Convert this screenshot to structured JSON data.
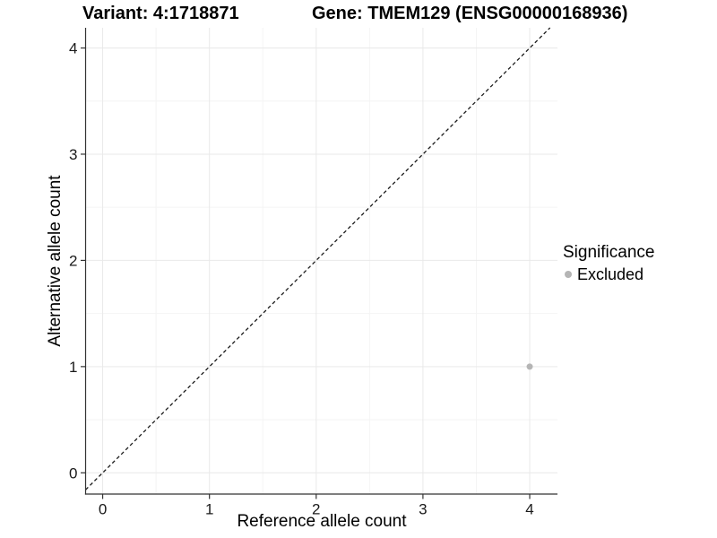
{
  "header": {
    "variant_title": "Variant: 4:1718871",
    "gene_title": "Gene: TMEM129 (ENSG00000168936)"
  },
  "legend": {
    "title": "Significance",
    "items": [
      {
        "label": "Excluded",
        "color": "#b5b5b5",
        "marker": "circle"
      }
    ]
  },
  "chart_data": {
    "type": "scatter",
    "title": "Variant: 4:1718871 / Gene: TMEM129 (ENSG00000168936)",
    "xlabel": "Reference allele count",
    "ylabel": "Alternative allele count",
    "xlim": [
      -0.16,
      4.26
    ],
    "ylim": [
      -0.2,
      4.19
    ],
    "xticks": [
      0,
      1,
      2,
      3,
      4
    ],
    "yticks": [
      0,
      1,
      2,
      3,
      4
    ],
    "minor_grid_step": 0.5,
    "grid": true,
    "legend_position": "right",
    "identity_line": {
      "equation": "y = x",
      "style": "dashed",
      "color": "#1a1a1a"
    },
    "series": [
      {
        "name": "Excluded",
        "color": "#b5b5b5",
        "points": [
          {
            "x": 4,
            "y": 1
          }
        ]
      }
    ]
  },
  "colors": {
    "background": "#ffffff",
    "grid_major": "#e9e9e9",
    "grid_minor": "#f4f4f4",
    "axis_line": "#333333",
    "tick_text": "#1a1a1a",
    "marker": "#b5b5b5"
  }
}
